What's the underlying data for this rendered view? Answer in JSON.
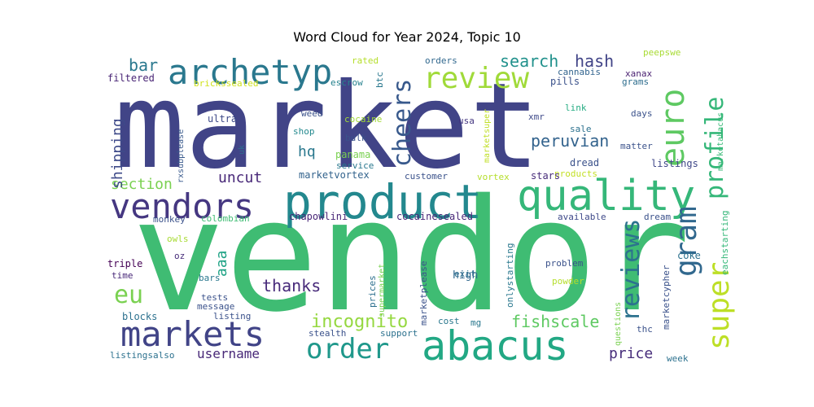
{
  "chart_data": {
    "type": "wordcloud",
    "title": "Word Cloud for Year 2024, Topic 10",
    "words": [
      {
        "text": "vendor",
        "weight": 190,
        "color": "#3fbc73"
      },
      {
        "text": "market",
        "weight": 145,
        "color": "#414487"
      },
      {
        "text": "product",
        "weight": 58,
        "color": "#23888e"
      },
      {
        "text": "quality",
        "weight": 52,
        "color": "#35b779"
      },
      {
        "text": "abacus",
        "weight": 50,
        "color": "#22a884"
      },
      {
        "text": "vendors",
        "weight": 42,
        "color": "#453781"
      },
      {
        "text": "markets",
        "weight": 42,
        "color": "#414487"
      },
      {
        "text": "archetyp",
        "weight": 42,
        "color": "#2a788e"
      },
      {
        "text": "euro",
        "weight": 40,
        "color": "#5ec962"
      },
      {
        "text": "review",
        "weight": 36,
        "color": "#a0da39"
      },
      {
        "text": "gram",
        "weight": 36,
        "color": "#31688e"
      },
      {
        "text": "order",
        "weight": 34,
        "color": "#1f988b"
      },
      {
        "text": "super",
        "weight": 36,
        "color": "#bddf26"
      },
      {
        "text": "reviews",
        "weight": 30,
        "color": "#2c728e"
      },
      {
        "text": "cheers",
        "weight": 30,
        "color": "#38598c"
      },
      {
        "text": "profile",
        "weight": 30,
        "color": "#35b779"
      },
      {
        "text": "eu",
        "weight": 30,
        "color": "#7ad151"
      },
      {
        "text": "incognito",
        "weight": 22,
        "color": "#95d840"
      },
      {
        "text": "fishscale",
        "weight": 20,
        "color": "#5ec962"
      },
      {
        "text": "thanks",
        "weight": 20,
        "color": "#472a7a"
      },
      {
        "text": "peruvian",
        "weight": 20,
        "color": "#33638d"
      },
      {
        "text": "search",
        "weight": 20,
        "color": "#21918c"
      },
      {
        "text": "hash",
        "weight": 20,
        "color": "#414487"
      },
      {
        "text": "bar",
        "weight": 20,
        "color": "#2a788e"
      },
      {
        "text": "section",
        "weight": 18,
        "color": "#7ad151"
      },
      {
        "text": "uncut",
        "weight": 18,
        "color": "#482878"
      },
      {
        "text": "hq",
        "weight": 18,
        "color": "#2a788e"
      },
      {
        "text": "shipping",
        "weight": 18,
        "color": "#3e4a89"
      },
      {
        "text": "username",
        "weight": 16,
        "color": "#482878"
      },
      {
        "text": "price",
        "weight": 18,
        "color": "#472d7b"
      },
      {
        "text": "aaa",
        "weight": 18,
        "color": "#20a386"
      },
      {
        "text": "filtered",
        "weight": 12,
        "color": "#482475"
      },
      {
        "text": "brickssealed",
        "weight": 11,
        "color": "#d0e11c"
      },
      {
        "text": "rated",
        "weight": 11,
        "color": "#b5de2b"
      },
      {
        "text": "orders",
        "weight": 11,
        "color": "#31688e"
      },
      {
        "text": "escrow",
        "weight": 11,
        "color": "#26828e"
      },
      {
        "text": "btc",
        "weight": 11,
        "color": "#2a788e"
      },
      {
        "text": "cannabis",
        "weight": 11,
        "color": "#32648e"
      },
      {
        "text": "pills",
        "weight": 12,
        "color": "#3b528b"
      },
      {
        "text": "peepswe",
        "weight": 11,
        "color": "#a8db34"
      },
      {
        "text": "xanax",
        "weight": 11,
        "color": "#481f70"
      },
      {
        "text": "grams",
        "weight": 11,
        "color": "#2e6e8e"
      },
      {
        "text": "marketabacus",
        "weight": 10,
        "color": "#38b977"
      },
      {
        "text": "marketsuper",
        "weight": 10,
        "color": "#c0df25"
      },
      {
        "text": "link",
        "weight": 11,
        "color": "#25ac82"
      },
      {
        "text": "days",
        "weight": 11,
        "color": "#3b528b"
      },
      {
        "text": "xmr",
        "weight": 11,
        "color": "#3e4989"
      },
      {
        "text": "ultra",
        "weight": 12,
        "color": "#3e4a89"
      },
      {
        "text": "weed",
        "weight": 11,
        "color": "#3b528b"
      },
      {
        "text": "cocaine",
        "weight": 11,
        "color": "#a2da37"
      },
      {
        "text": "usa",
        "weight": 11,
        "color": "#453781"
      },
      {
        "text": "shop",
        "weight": 11,
        "color": "#23898e"
      },
      {
        "text": "bulk",
        "weight": 11,
        "color": "#3b528b"
      },
      {
        "text": "sale",
        "weight": 11,
        "color": "#2c718e"
      },
      {
        "text": "matter",
        "weight": 11,
        "color": "#3b528b"
      },
      {
        "text": "listings",
        "weight": 12,
        "color": "#3f4788"
      },
      {
        "text": "panama",
        "weight": 12,
        "color": "#7ad151"
      },
      {
        "text": "service",
        "weight": 11,
        "color": "#2a788e"
      },
      {
        "text": "dread",
        "weight": 12,
        "color": "#3b528b"
      },
      {
        "text": "products",
        "weight": 11,
        "color": "#c2df23"
      },
      {
        "text": "vortex",
        "weight": 11,
        "color": "#b5de2b"
      },
      {
        "text": "stars",
        "weight": 12,
        "color": "#472c7a"
      },
      {
        "text": "customer",
        "weight": 11,
        "color": "#3b528b"
      },
      {
        "text": "marketvortex",
        "weight": 12,
        "color": "#33638d"
      },
      {
        "text": "rxsubplease",
        "weight": 10,
        "color": "#38598c"
      },
      {
        "text": "uk",
        "weight": 10,
        "color": "#2e6e8e"
      },
      {
        "text": "chapowlini",
        "weight": 12,
        "color": "#482677"
      },
      {
        "text": "cocainesealed",
        "weight": 12,
        "color": "#482878"
      },
      {
        "text": "available",
        "weight": 11,
        "color": "#3e4989"
      },
      {
        "text": "dream",
        "weight": 11,
        "color": "#3b528b"
      },
      {
        "text": "monkey",
        "weight": 11,
        "color": "#3b528b"
      },
      {
        "text": "colombian",
        "weight": 11,
        "color": "#3fbc73"
      },
      {
        "text": "eachstarting",
        "weight": 11,
        "color": "#35b779"
      },
      {
        "text": "owls",
        "weight": 11,
        "color": "#a8db34"
      },
      {
        "text": "oz",
        "weight": 11,
        "color": "#472c7a"
      },
      {
        "text": "coke",
        "weight": 12,
        "color": "#2c718e"
      },
      {
        "text": "triple",
        "weight": 12,
        "color": "#440154"
      },
      {
        "text": "time",
        "weight": 11,
        "color": "#482878"
      },
      {
        "text": "bars",
        "weight": 11,
        "color": "#2a788e"
      },
      {
        "text": "exit",
        "weight": 11,
        "color": "#2c718e"
      },
      {
        "text": "problem",
        "weight": 11,
        "color": "#3b528b"
      },
      {
        "text": "prices",
        "weight": 11,
        "color": "#2d708e"
      },
      {
        "text": "supermarket",
        "weight": 10,
        "color": "#7ad151"
      },
      {
        "text": "marketplease",
        "weight": 11,
        "color": "#3b528b"
      },
      {
        "text": "high",
        "weight": 13,
        "color": "#31688e"
      },
      {
        "text": "onlystarting",
        "weight": 11,
        "color": "#2a788e"
      },
      {
        "text": "powder",
        "weight": 11,
        "color": "#b5de2b"
      },
      {
        "text": "marketcypher",
        "weight": 11,
        "color": "#3b528b"
      },
      {
        "text": "tests",
        "weight": 11,
        "color": "#3b528b"
      },
      {
        "text": "message",
        "weight": 11,
        "color": "#3b528b"
      },
      {
        "text": "listing",
        "weight": 11,
        "color": "#3b528b"
      },
      {
        "text": "blocks",
        "weight": 12,
        "color": "#2c718e"
      },
      {
        "text": "cost",
        "weight": 11,
        "color": "#2a788e"
      },
      {
        "text": "mg",
        "weight": 11,
        "color": "#2a788e"
      },
      {
        "text": "stealth",
        "weight": 11,
        "color": "#3b528b"
      },
      {
        "text": "support",
        "weight": 11,
        "color": "#2c718e"
      },
      {
        "text": "questions",
        "weight": 10,
        "color": "#7ad151"
      },
      {
        "text": "thc",
        "weight": 11,
        "color": "#3b528b"
      },
      {
        "text": "listingsalso",
        "weight": 11,
        "color": "#2c718e"
      },
      {
        "text": "week",
        "weight": 11,
        "color": "#2c718e"
      }
    ]
  }
}
